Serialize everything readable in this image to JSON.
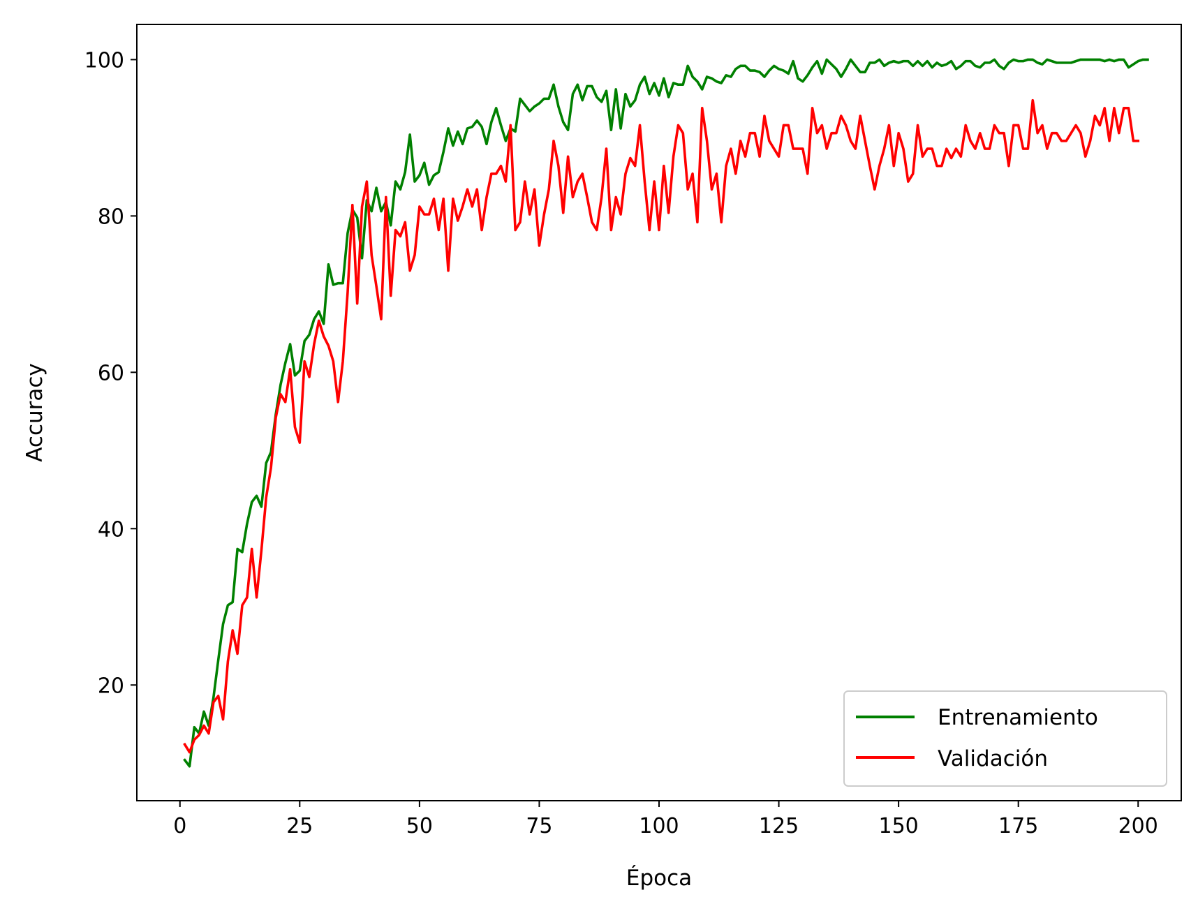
{
  "chart_data": {
    "type": "line",
    "title": "",
    "xlabel": "Época",
    "ylabel": "Accuracy",
    "xlim": [
      -9,
      209
    ],
    "ylim": [
      5.2,
      104.5
    ],
    "xticks": [
      0,
      25,
      50,
      75,
      100,
      125,
      150,
      175,
      200
    ],
    "yticks": [
      20,
      40,
      60,
      80,
      100
    ],
    "legend_position": "lower-right",
    "series": [
      {
        "name": "Entrenamiento",
        "color": "#008000",
        "values": [
          10.4,
          9.6,
          14.6,
          13.8,
          16.6,
          14.8,
          18.4,
          23.2,
          27.8,
          30.2,
          30.6,
          37.4,
          37.0,
          40.6,
          43.4,
          44.2,
          42.8,
          48.4,
          49.8,
          54.6,
          58.4,
          61.2,
          63.6,
          59.6,
          60.2,
          64.0,
          64.8,
          66.8,
          67.8,
          66.2,
          73.8,
          71.2,
          71.4,
          71.4,
          77.8,
          80.8,
          79.8,
          74.6,
          82.0,
          80.6,
          83.6,
          80.6,
          81.8,
          78.8,
          84.4,
          83.4,
          85.6,
          90.4,
          84.4,
          85.2,
          86.8,
          84.0,
          85.2,
          85.6,
          88.2,
          91.2,
          89.0,
          90.8,
          89.2,
          91.2,
          91.4,
          92.2,
          91.4,
          89.2,
          92.0,
          93.8,
          91.6,
          89.6,
          91.2,
          90.8,
          95.0,
          94.2,
          93.4,
          94.0,
          94.4,
          95.0,
          95.0,
          96.8,
          94.0,
          92.0,
          91.0,
          95.6,
          96.8,
          94.8,
          96.6,
          96.6,
          95.2,
          94.6,
          96.0,
          91.0,
          96.2,
          91.2,
          95.6,
          94.0,
          94.8,
          96.8,
          97.8,
          95.6,
          97.0,
          95.4,
          97.6,
          95.2,
          97.0,
          96.8,
          96.8,
          99.2,
          97.8,
          97.2,
          96.2,
          97.8,
          97.6,
          97.2,
          97.0,
          98.0,
          97.8,
          98.8,
          99.2,
          99.2,
          98.6,
          98.6,
          98.4,
          97.8,
          98.6,
          99.2,
          98.8,
          98.6,
          98.2,
          99.8,
          97.6,
          97.2,
          98.0,
          99.0,
          99.8,
          98.2,
          100.0,
          99.4,
          98.8,
          97.8,
          98.8,
          100.0,
          99.2,
          98.4,
          98.4,
          99.6,
          99.6,
          100.0,
          99.2,
          99.6,
          99.8,
          99.6,
          99.8,
          99.8,
          99.2,
          99.8,
          99.2,
          99.8,
          99.0,
          99.6,
          99.2,
          99.4,
          99.8,
          98.8,
          99.2,
          99.8,
          99.8,
          99.2,
          99.0,
          99.6,
          99.6,
          100.0,
          99.2,
          98.8,
          99.6,
          100.0,
          99.8,
          99.8,
          100.0,
          100.0,
          99.6,
          99.4,
          100.0,
          99.8,
          99.6,
          99.6,
          99.6,
          99.6,
          99.8,
          100.0,
          100.0,
          100.0,
          100.0,
          100.0,
          99.8,
          100.0,
          99.8,
          100.0,
          100.0,
          99.0,
          99.4,
          99.8,
          100.0,
          100.0
        ]
      },
      {
        "name": "Validación",
        "color": "#ff0000",
        "values": [
          12.4,
          11.4,
          13.0,
          13.6,
          14.8,
          13.8,
          17.8,
          18.6,
          15.6,
          23.0,
          27.0,
          24.0,
          30.2,
          31.2,
          37.4,
          31.2,
          37.2,
          44.0,
          47.8,
          54.2,
          57.2,
          56.2,
          60.4,
          53.0,
          51.0,
          61.4,
          59.4,
          63.6,
          66.6,
          64.6,
          63.4,
          61.4,
          56.2,
          61.4,
          70.2,
          81.4,
          68.8,
          81.2,
          84.4,
          75.0,
          71.0,
          66.8,
          82.4,
          69.8,
          78.2,
          77.4,
          79.2,
          73.0,
          75.0,
          81.2,
          80.2,
          80.2,
          82.2,
          78.2,
          82.2,
          73.0,
          82.2,
          79.4,
          81.2,
          83.4,
          81.2,
          83.4,
          78.2,
          82.4,
          85.4,
          85.4,
          86.4,
          84.4,
          91.6,
          78.2,
          79.2,
          84.4,
          80.2,
          83.4,
          76.2,
          80.2,
          83.4,
          89.6,
          86.4,
          80.4,
          87.6,
          82.4,
          84.4,
          85.4,
          82.4,
          79.2,
          78.2,
          82.4,
          88.6,
          78.2,
          82.4,
          80.2,
          85.4,
          87.4,
          86.4,
          91.6,
          84.4,
          78.2,
          84.4,
          78.2,
          86.4,
          80.4,
          87.6,
          91.6,
          90.6,
          83.4,
          85.4,
          79.2,
          93.8,
          89.6,
          83.4,
          85.4,
          79.2,
          86.4,
          88.6,
          85.4,
          89.6,
          87.6,
          90.6,
          90.6,
          87.6,
          92.8,
          89.6,
          88.6,
          87.6,
          91.6,
          91.6,
          88.6,
          88.6,
          88.6,
          85.4,
          93.8,
          90.6,
          91.6,
          88.6,
          90.6,
          90.6,
          92.8,
          91.6,
          89.6,
          88.6,
          92.8,
          89.6,
          86.4,
          83.4,
          86.4,
          88.6,
          91.6,
          86.4,
          90.6,
          88.6,
          84.4,
          85.4,
          91.6,
          87.6,
          88.6,
          88.6,
          86.4,
          86.4,
          88.6,
          87.4,
          88.6,
          87.6,
          91.6,
          89.6,
          88.6,
          90.6,
          88.6,
          88.6,
          91.6,
          90.6,
          90.6,
          86.4,
          91.6,
          91.6,
          88.6,
          88.6,
          94.8,
          90.6,
          91.6,
          88.6,
          90.6,
          90.6,
          89.6,
          89.6,
          90.6,
          91.6,
          90.6,
          87.6,
          89.6,
          92.8,
          91.6,
          93.8,
          89.6,
          93.8,
          90.6,
          93.8,
          93.8,
          89.6,
          89.6
        ]
      }
    ]
  }
}
